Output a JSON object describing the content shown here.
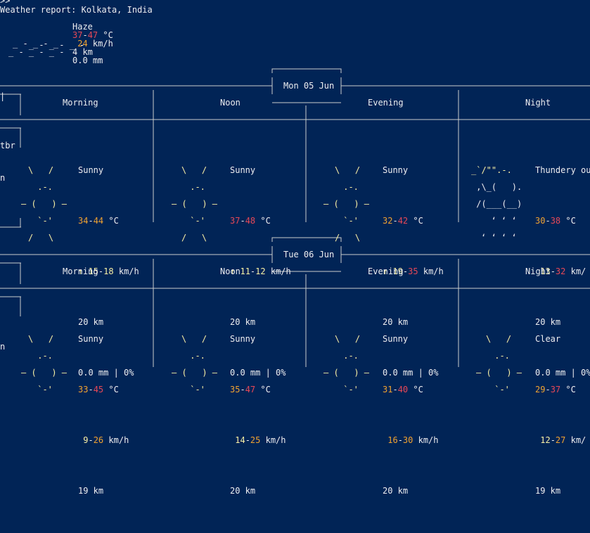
{
  "terminal": {
    "prompt": ">>",
    "title": "Weather report: Kolkata, India"
  },
  "current": {
    "condition": "Haze",
    "icon_lines": [
      "_ - _ - _ -",
      "_ - _ - _",
      "_ - _ - _ -"
    ],
    "temp_low": "37",
    "temp_sep": "-",
    "temp_high": "47",
    "temp_unit": "°C",
    "wind_arrow": "",
    "wind_speed": "24",
    "wind_unit": "km/h",
    "visibility": "4 km",
    "precip": "0.0 mm",
    "colors": {
      "temp_low": "#e74856",
      "temp_high": "#e74856",
      "wind": "#f0a330"
    }
  },
  "periods": [
    "Morning",
    "Noon",
    "Evening",
    "Night"
  ],
  "days": [
    {
      "date": "Mon 05 Jun",
      "slots": [
        {
          "condition": "Sunny",
          "temp_low": "34",
          "temp_high": "44",
          "temp_unit": "°C",
          "wind_arrow": "↑",
          "wind_low": "15",
          "wind_high": "18",
          "wind_unit": "km/h",
          "visibility": "20 km",
          "precip": "0.0 mm | 0%"
        },
        {
          "condition": "Sunny",
          "temp_low": "37",
          "temp_high": "48",
          "temp_unit": "°C",
          "wind_arrow": "↑",
          "wind_low": "11",
          "wind_high": "12",
          "wind_unit": "km/h",
          "visibility": "20 km",
          "precip": "0.0 mm | 0%"
        },
        {
          "condition": "Sunny",
          "temp_low": "32",
          "temp_high": "42",
          "temp_unit": "°C",
          "wind_arrow": "↑",
          "wind_low": "19",
          "wind_high": "35",
          "wind_unit": "km/h",
          "visibility": "20 km",
          "precip": "0.0 mm | 0%"
        },
        {
          "condition": "Thundery ou",
          "temp_low": "30",
          "temp_high": "38",
          "temp_unit": "°C",
          "wind_arrow": "",
          "wind_low": "13",
          "wind_high": "32",
          "wind_unit": "km/",
          "visibility": "20 km",
          "precip": "0.0 mm | 0%"
        }
      ]
    },
    {
      "date": "Tue 06 Jun",
      "slots": [
        {
          "condition": "Sunny",
          "temp_low": "33",
          "temp_high": "45",
          "temp_unit": "°C",
          "wind_arrow": "",
          "wind_low": "9",
          "wind_high": "26",
          "wind_unit": "km/h",
          "visibility": "19 km"
        },
        {
          "condition": "Sunny",
          "temp_low": "35",
          "temp_high": "47",
          "temp_unit": "°C",
          "wind_arrow": "",
          "wind_low": "14",
          "wind_high": "25",
          "wind_unit": "km/h",
          "visibility": "20 km"
        },
        {
          "condition": "Sunny",
          "temp_low": "31",
          "temp_high": "40",
          "temp_unit": "°C",
          "wind_arrow": "",
          "wind_low": "16",
          "wind_high": "30",
          "wind_unit": "km/h",
          "visibility": "20 km"
        },
        {
          "condition": "Clear",
          "temp_low": "29",
          "temp_high": "37",
          "temp_unit": "°C",
          "wind_arrow": "",
          "wind_low": "12",
          "wind_high": "27",
          "wind_unit": "km/",
          "visibility": "19 km"
        }
      ]
    }
  ],
  "fragments": {
    "clipped_left_1": "tbr",
    "clipped_left_2": "n"
  },
  "icons": {
    "sunny": [
      "\\   /",
      " .-.",
      "― (   ) ―",
      " `-'",
      "/   \\"
    ],
    "thunder": [
      "_`/\"\".-.",
      " ,\\_(   ).",
      " /(___(__)",
      "  ‘ ‘ ‘",
      "‘ ‘ ‘ ‘"
    ]
  },
  "colors": {
    "background": "#012456",
    "text": "#eeedf0",
    "sun": "#f9f1a5",
    "lines": "#cccccc"
  }
}
